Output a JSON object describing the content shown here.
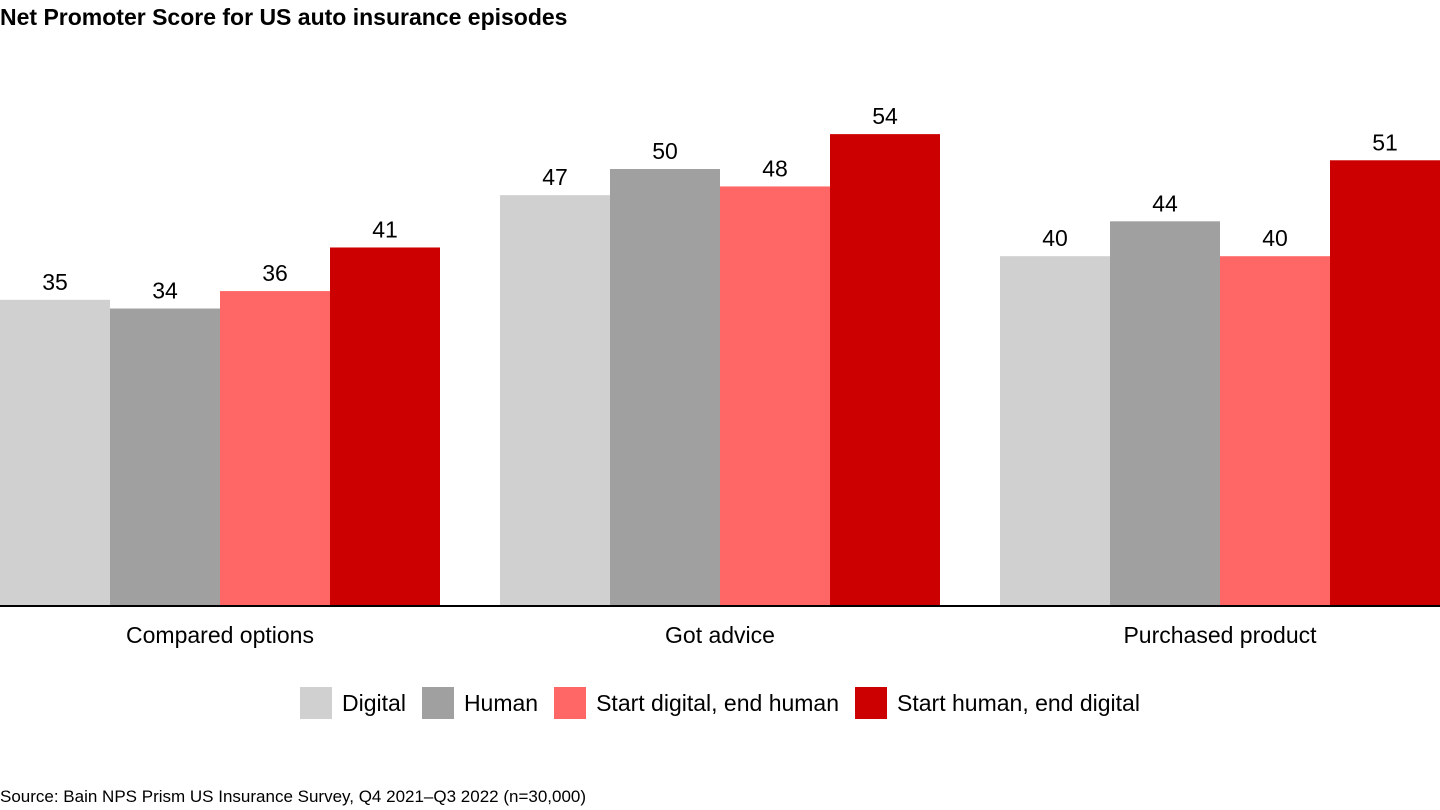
{
  "chart_data": {
    "type": "bar",
    "title": "Net Promoter Score for US auto insurance episodes",
    "categories": [
      "Compared options",
      "Got advice",
      "Purchased product"
    ],
    "series": [
      {
        "name": "Digital",
        "color": "#d0d0d0",
        "values": [
          35,
          47,
          40
        ]
      },
      {
        "name": "Human",
        "color": "#a0a0a0",
        "values": [
          34,
          50,
          44
        ]
      },
      {
        "name": "Start digital, end human",
        "color": "#ff6666",
        "values": [
          36,
          48,
          40
        ]
      },
      {
        "name": "Start human, end digital",
        "color": "#cc0000",
        "values": [
          41,
          54,
          51
        ]
      }
    ],
    "xlabel": "",
    "ylabel": "",
    "ylim": [
      0,
      54
    ],
    "grid": false,
    "legend_position": "bottom",
    "data_labels": true
  },
  "source": "Source: Bain NPS Prism US Insurance Survey, Q4 2021–Q3 2022 (n=30,000)"
}
